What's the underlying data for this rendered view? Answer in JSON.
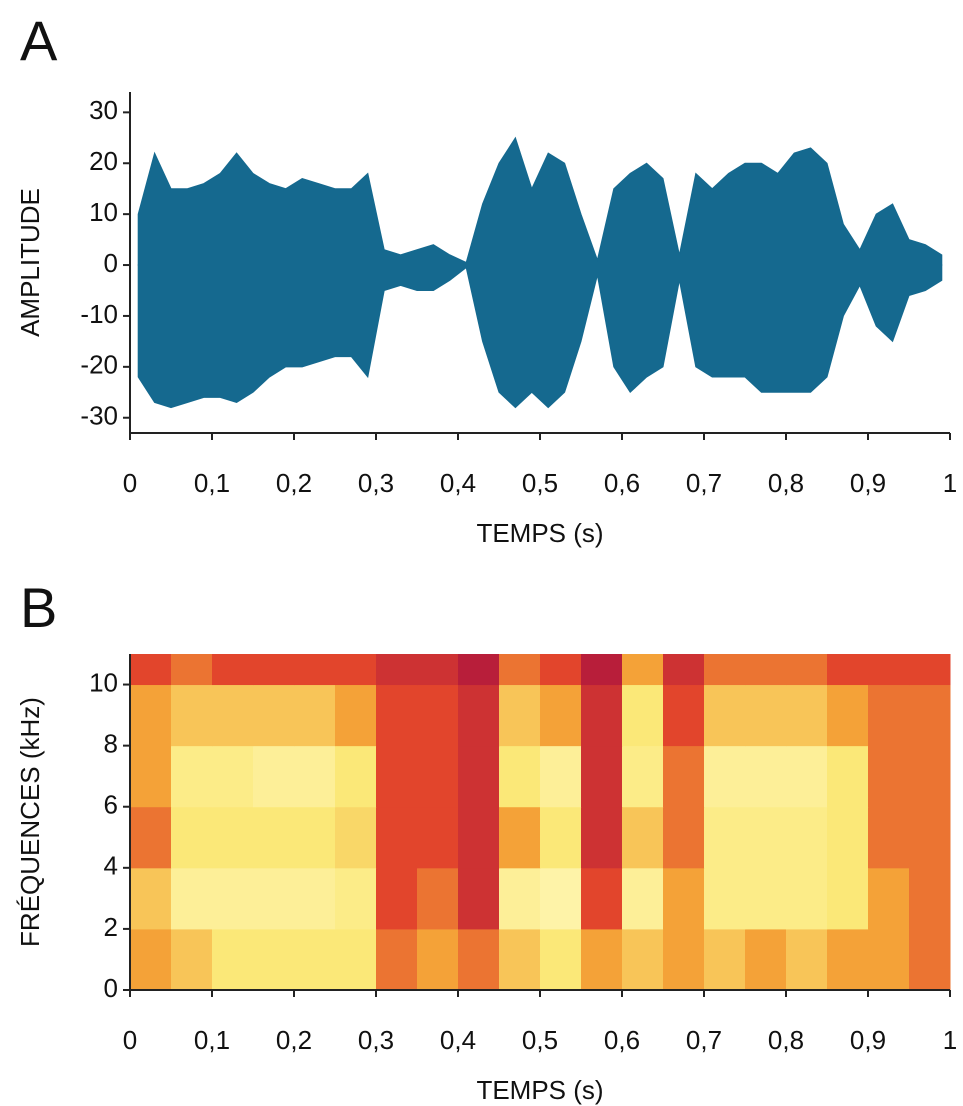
{
  "chart_data": [
    {
      "type": "area",
      "panel": "A",
      "xlabel": "TEMPS (s)",
      "ylabel": "AMPLITUDE",
      "x": [
        0.01,
        0.03,
        0.05,
        0.07,
        0.09,
        0.11,
        0.13,
        0.15,
        0.17,
        0.19,
        0.21,
        0.23,
        0.25,
        0.27,
        0.29,
        0.31,
        0.33,
        0.35,
        0.37,
        0.39,
        0.41,
        0.43,
        0.45,
        0.47,
        0.49,
        0.51,
        0.53,
        0.55,
        0.57,
        0.59,
        0.61,
        0.63,
        0.65,
        0.67,
        0.69,
        0.71,
        0.73,
        0.75,
        0.77,
        0.79,
        0.81,
        0.83,
        0.85,
        0.87,
        0.89,
        0.91,
        0.93,
        0.95,
        0.97,
        0.99
      ],
      "series": [
        {
          "color": "#15698f",
          "values": [
            10,
            22,
            15,
            15,
            16,
            18,
            22,
            18,
            16,
            15,
            17,
            16,
            15,
            15,
            18,
            3,
            2,
            3,
            4,
            2,
            0.5,
            12,
            20,
            25,
            15,
            22,
            20,
            10,
            1,
            15,
            18,
            20,
            17,
            2,
            18,
            15,
            18,
            20,
            20,
            18,
            22,
            23,
            20,
            8,
            3,
            10,
            12,
            5,
            4,
            2
          ]
        },
        {
          "color": "#15698f",
          "values": [
            -22,
            -27,
            -28,
            -27,
            -26,
            -26,
            -27,
            -25,
            -22,
            -20,
            -20,
            -19,
            -18,
            -18,
            -22,
            -5,
            -4,
            -5,
            -5,
            -3,
            -0.5,
            -15,
            -25,
            -28,
            -25,
            -28,
            -25,
            -15,
            -2,
            -20,
            -25,
            -22,
            -20,
            -3,
            -20,
            -22,
            -22,
            -22,
            -25,
            -25,
            -25,
            -25,
            -22,
            -10,
            -4,
            -12,
            -15,
            -6,
            -5,
            -3
          ]
        }
      ],
      "xlim": [
        0,
        1
      ],
      "xticks": [
        {
          "value": 0,
          "label": "0"
        },
        {
          "value": 0.1,
          "label": "0,1"
        },
        {
          "value": 0.2,
          "label": "0,2"
        },
        {
          "value": 0.3,
          "label": "0,3"
        },
        {
          "value": 0.4,
          "label": "0,4"
        },
        {
          "value": 0.5,
          "label": "0,5"
        },
        {
          "value": 0.6,
          "label": "0,6"
        },
        {
          "value": 0.7,
          "label": "0,7"
        },
        {
          "value": 0.8,
          "label": "0,8"
        },
        {
          "value": 0.9,
          "label": "0,9"
        },
        {
          "value": 1,
          "label": "1"
        }
      ],
      "ylim": [
        -33,
        34
      ],
      "yticks": [
        30,
        20,
        10,
        0,
        -10,
        -20,
        -30
      ]
    },
    {
      "type": "heatmap",
      "panel": "B",
      "xlabel": "TEMPS (s)",
      "ylabel": "FRÉQUENCES (kHz)",
      "xbins": [
        0,
        0.05,
        0.1,
        0.15,
        0.2,
        0.25,
        0.3,
        0.35,
        0.4,
        0.45,
        0.5,
        0.55,
        0.6,
        0.65,
        0.7,
        0.75,
        0.8,
        0.85,
        0.9,
        0.95,
        1
      ],
      "ybins": [
        0,
        2,
        4,
        6,
        8,
        10,
        11
      ],
      "values": [
        [
          0.6,
          0.7,
          0.8,
          0.8,
          0.8,
          0.8,
          0.5,
          0.6,
          0.5,
          0.7,
          0.8,
          0.6,
          0.7,
          0.6,
          0.7,
          0.6,
          0.7,
          0.6,
          0.6,
          0.5
        ],
        [
          0.7,
          0.9,
          0.9,
          0.9,
          0.9,
          0.85,
          0.4,
          0.5,
          0.3,
          0.9,
          0.95,
          0.4,
          0.9,
          0.6,
          0.85,
          0.85,
          0.85,
          0.8,
          0.6,
          0.5
        ],
        [
          0.5,
          0.8,
          0.8,
          0.8,
          0.8,
          0.75,
          0.4,
          0.4,
          0.3,
          0.6,
          0.8,
          0.3,
          0.7,
          0.5,
          0.85,
          0.85,
          0.85,
          0.8,
          0.5,
          0.5
        ],
        [
          0.6,
          0.85,
          0.85,
          0.9,
          0.9,
          0.8,
          0.4,
          0.4,
          0.3,
          0.8,
          0.9,
          0.3,
          0.85,
          0.5,
          0.9,
          0.9,
          0.9,
          0.8,
          0.5,
          0.5
        ],
        [
          0.6,
          0.7,
          0.7,
          0.7,
          0.7,
          0.6,
          0.4,
          0.4,
          0.3,
          0.7,
          0.6,
          0.3,
          0.8,
          0.4,
          0.7,
          0.7,
          0.7,
          0.6,
          0.5,
          0.5
        ],
        [
          0.4,
          0.5,
          0.4,
          0.4,
          0.4,
          0.4,
          0.3,
          0.3,
          0.2,
          0.5,
          0.4,
          0.2,
          0.6,
          0.3,
          0.5,
          0.5,
          0.5,
          0.4,
          0.4,
          0.4
        ]
      ],
      "zlim": [
        0,
        1
      ],
      "colormap": [
        "#4a2458",
        "#b81e3a",
        "#e2452c",
        "#f4a238",
        "#fbe878",
        "#fff6b8"
      ],
      "xlim": [
        0,
        1
      ],
      "xticks": [
        {
          "value": 0,
          "label": "0"
        },
        {
          "value": 0.1,
          "label": "0,1"
        },
        {
          "value": 0.2,
          "label": "0,2"
        },
        {
          "value": 0.3,
          "label": "0,3"
        },
        {
          "value": 0.4,
          "label": "0,4"
        },
        {
          "value": 0.5,
          "label": "0,5"
        },
        {
          "value": 0.6,
          "label": "0,6"
        },
        {
          "value": 0.7,
          "label": "0,7"
        },
        {
          "value": 0.8,
          "label": "0,8"
        },
        {
          "value": 0.9,
          "label": "0,9"
        },
        {
          "value": 1,
          "label": "1"
        }
      ],
      "ylim": [
        0,
        11
      ],
      "yticks": [
        0,
        2,
        4,
        6,
        8,
        10
      ]
    }
  ]
}
